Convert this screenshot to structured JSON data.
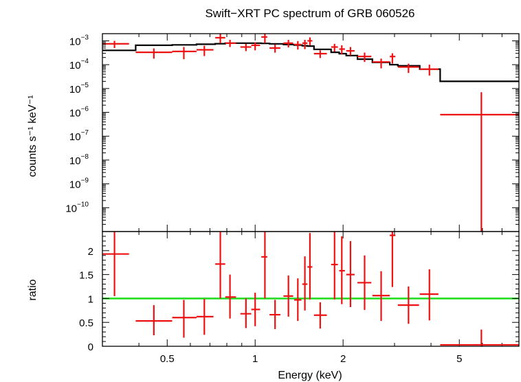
{
  "chart_data": [
    {
      "type": "line",
      "panel": "spectrum",
      "title": "Swift−XRT PC spectrum of GRB 060526",
      "xlabel": "",
      "ylabel": "counts s⁻¹ keV⁻¹",
      "xscale": "log",
      "yscale": "log",
      "xlim": [
        0.3,
        8.0
      ],
      "ylim": [
        1e-11,
        0.002
      ],
      "ytick_labels": [
        {
          "value": 0.001,
          "base": "10",
          "exp": "−3"
        },
        {
          "value": 0.0001,
          "base": "10",
          "exp": "−4"
        },
        {
          "value": 1e-05,
          "base": "10",
          "exp": "−5"
        },
        {
          "value": 1e-06,
          "base": "10",
          "exp": "−6"
        },
        {
          "value": 1e-07,
          "base": "10",
          "exp": "−7"
        },
        {
          "value": 1e-08,
          "base": "10",
          "exp": "−8"
        },
        {
          "value": 1e-09,
          "base": "10",
          "exp": "−9"
        },
        {
          "value": 1e-10,
          "base": "10",
          "exp": "−10"
        }
      ],
      "series": [
        {
          "name": "data",
          "color": "#ee1111",
          "points": [
            {
              "x": 0.33,
              "xlo": 0.3,
              "xhi": 0.37,
              "y": 0.00075,
              "ylo": 0.0005,
              "yhi": 0.001
            },
            {
              "x": 0.45,
              "xlo": 0.39,
              "xhi": 0.52,
              "y": 0.00033,
              "ylo": 0.00018,
              "yhi": 0.00048
            },
            {
              "x": 0.57,
              "xlo": 0.52,
              "xhi": 0.63,
              "y": 0.00036,
              "ylo": 0.00017,
              "yhi": 0.00055
            },
            {
              "x": 0.67,
              "xlo": 0.63,
              "xhi": 0.72,
              "y": 0.00042,
              "ylo": 0.00023,
              "yhi": 0.00062
            },
            {
              "x": 0.76,
              "xlo": 0.73,
              "xhi": 0.79,
              "y": 0.00135,
              "ylo": 0.0008,
              "yhi": 0.002
            },
            {
              "x": 0.82,
              "xlo": 0.79,
              "xhi": 0.86,
              "y": 0.0008,
              "ylo": 0.00055,
              "yhi": 0.0011
            },
            {
              "x": 0.93,
              "xlo": 0.89,
              "xhi": 0.97,
              "y": 0.00055,
              "ylo": 0.00037,
              "yhi": 0.00075
            },
            {
              "x": 1.0,
              "xlo": 0.97,
              "xhi": 1.04,
              "y": 0.00065,
              "ylo": 0.0004,
              "yhi": 0.00085
            },
            {
              "x": 1.08,
              "xlo": 1.05,
              "xhi": 1.1,
              "y": 0.00145,
              "ylo": 0.0008,
              "yhi": 0.002
            },
            {
              "x": 1.17,
              "xlo": 1.12,
              "xhi": 1.22,
              "y": 0.0005,
              "ylo": 0.00032,
              "yhi": 0.0007
            },
            {
              "x": 1.3,
              "xlo": 1.25,
              "xhi": 1.35,
              "y": 0.0008,
              "ylo": 0.00053,
              "yhi": 0.0011
            },
            {
              "x": 1.4,
              "xlo": 1.36,
              "xhi": 1.44,
              "y": 0.0007,
              "ylo": 0.00043,
              "yhi": 0.00098
            },
            {
              "x": 1.48,
              "xlo": 1.45,
              "xhi": 1.51,
              "y": 0.0008,
              "ylo": 0.00045,
              "yhi": 0.0011
            },
            {
              "x": 1.54,
              "xlo": 1.51,
              "xhi": 1.57,
              "y": 0.001,
              "ylo": 0.00065,
              "yhi": 0.0014
            },
            {
              "x": 1.67,
              "xlo": 1.59,
              "xhi": 1.76,
              "y": 0.00029,
              "ylo": 0.00019,
              "yhi": 0.0004
            },
            {
              "x": 1.87,
              "xlo": 1.82,
              "xhi": 1.92,
              "y": 0.00055,
              "ylo": 0.00035,
              "yhi": 0.00075
            },
            {
              "x": 1.98,
              "xlo": 1.94,
              "xhi": 2.03,
              "y": 0.00045,
              "ylo": 0.00027,
              "yhi": 0.00065
            },
            {
              "x": 2.12,
              "xlo": 2.05,
              "xhi": 2.19,
              "y": 0.00038,
              "ylo": 0.00024,
              "yhi": 0.00055
            },
            {
              "x": 2.37,
              "xlo": 2.24,
              "xhi": 2.5,
              "y": 0.00022,
              "ylo": 0.00013,
              "yhi": 0.00032
            },
            {
              "x": 2.7,
              "xlo": 2.52,
              "xhi": 2.89,
              "y": 0.00013,
              "ylo": 7e-05,
              "yhi": 0.00018
            },
            {
              "x": 2.95,
              "xlo": 2.89,
              "xhi": 3.02,
              "y": 0.00022,
              "ylo": 0.00011,
              "yhi": 0.0003
            },
            {
              "x": 3.35,
              "xlo": 3.08,
              "xhi": 3.64,
              "y": 8e-05,
              "ylo": 4.5e-05,
              "yhi": 0.00011
            },
            {
              "x": 3.95,
              "xlo": 3.66,
              "xhi": 4.24,
              "y": 6.5e-05,
              "ylo": 3.5e-05,
              "yhi": 0.0001
            },
            {
              "x": 5.95,
              "xlo": 4.3,
              "xhi": 8.0,
              "y": 8e-07,
              "ylo": 1e-11,
              "yhi": 7e-06
            }
          ]
        },
        {
          "name": "model",
          "color": "#000000",
          "steps": [
            {
              "xlo": 0.3,
              "xhi": 0.39,
              "y": 0.0004
            },
            {
              "xlo": 0.39,
              "xhi": 0.52,
              "y": 0.00065
            },
            {
              "xlo": 0.52,
              "xhi": 0.63,
              "y": 0.00068
            },
            {
              "xlo": 0.63,
              "xhi": 0.73,
              "y": 0.00072
            },
            {
              "xlo": 0.73,
              "xhi": 0.79,
              "y": 0.00076
            },
            {
              "xlo": 0.79,
              "xhi": 0.89,
              "y": 0.0008
            },
            {
              "xlo": 0.89,
              "xhi": 1.05,
              "y": 0.0008
            },
            {
              "xlo": 1.05,
              "xhi": 1.12,
              "y": 0.00078
            },
            {
              "xlo": 1.12,
              "xhi": 1.25,
              "y": 0.00075
            },
            {
              "xlo": 1.25,
              "xhi": 1.36,
              "y": 0.0007
            },
            {
              "xlo": 1.36,
              "xhi": 1.45,
              "y": 0.00066
            },
            {
              "xlo": 1.45,
              "xhi": 1.51,
              "y": 0.00062
            },
            {
              "xlo": 1.51,
              "xhi": 1.59,
              "y": 0.0006
            },
            {
              "xlo": 1.59,
              "xhi": 1.82,
              "y": 0.00044
            },
            {
              "xlo": 1.82,
              "xhi": 1.94,
              "y": 0.00033
            },
            {
              "xlo": 1.94,
              "xhi": 2.05,
              "y": 0.00029
            },
            {
              "xlo": 2.05,
              "xhi": 2.24,
              "y": 0.00024
            },
            {
              "xlo": 2.24,
              "xhi": 2.52,
              "y": 0.00017
            },
            {
              "xlo": 2.52,
              "xhi": 2.89,
              "y": 0.000125
            },
            {
              "xlo": 2.89,
              "xhi": 3.08,
              "y": 0.0001
            },
            {
              "xlo": 3.08,
              "xhi": 3.66,
              "y": 9e-05
            },
            {
              "xlo": 3.66,
              "xhi": 4.3,
              "y": 6.5e-05
            },
            {
              "xlo": 4.3,
              "xhi": 8.0,
              "y": 2e-05
            }
          ]
        }
      ]
    },
    {
      "type": "line",
      "panel": "ratio",
      "title": "",
      "xlabel": "Energy (keV)",
      "ylabel": "ratio",
      "xscale": "log",
      "yscale": "linear",
      "xlim": [
        0.3,
        8.0
      ],
      "ylim": [
        0,
        2.4
      ],
      "xticks": [
        {
          "value": 0.5,
          "label": "0.5"
        },
        {
          "value": 1,
          "label": "1"
        },
        {
          "value": 2,
          "label": "2"
        },
        {
          "value": 5,
          "label": "5"
        }
      ],
      "yticks": [
        {
          "value": 0,
          "label": "0"
        },
        {
          "value": 0.5,
          "label": "0.5"
        },
        {
          "value": 1,
          "label": "1"
        },
        {
          "value": 1.5,
          "label": "1.5"
        },
        {
          "value": 2,
          "label": "2"
        }
      ],
      "reference_line": {
        "y": 1,
        "color": "#22dd22"
      },
      "series": [
        {
          "name": "ratio",
          "color": "#ee1111",
          "points": [
            {
              "x": 0.33,
              "xlo": 0.3,
              "xhi": 0.37,
              "y": 1.93,
              "ylo": 1.05,
              "yhi": 2.4
            },
            {
              "x": 0.45,
              "xlo": 0.39,
              "xhi": 0.52,
              "y": 0.53,
              "ylo": 0.23,
              "yhi": 0.86
            },
            {
              "x": 0.57,
              "xlo": 0.52,
              "xhi": 0.63,
              "y": 0.6,
              "ylo": 0.18,
              "yhi": 0.97
            },
            {
              "x": 0.67,
              "xlo": 0.63,
              "xhi": 0.72,
              "y": 0.62,
              "ylo": 0.24,
              "yhi": 0.99
            },
            {
              "x": 0.76,
              "xlo": 0.73,
              "xhi": 0.79,
              "y": 1.72,
              "ylo": 1.0,
              "yhi": 2.4
            },
            {
              "x": 0.82,
              "xlo": 0.79,
              "xhi": 0.86,
              "y": 1.03,
              "ylo": 0.58,
              "yhi": 1.5
            },
            {
              "x": 0.93,
              "xlo": 0.89,
              "xhi": 0.97,
              "y": 0.68,
              "ylo": 0.38,
              "yhi": 1.0
            },
            {
              "x": 1.0,
              "xlo": 0.97,
              "xhi": 1.04,
              "y": 0.77,
              "ylo": 0.42,
              "yhi": 1.12
            },
            {
              "x": 1.08,
              "xlo": 1.05,
              "xhi": 1.1,
              "y": 1.87,
              "ylo": 1.0,
              "yhi": 2.4
            },
            {
              "x": 1.17,
              "xlo": 1.12,
              "xhi": 1.22,
              "y": 0.66,
              "ylo": 0.36,
              "yhi": 0.97
            },
            {
              "x": 1.3,
              "xlo": 1.25,
              "xhi": 1.35,
              "y": 1.05,
              "ylo": 0.62,
              "yhi": 1.48
            },
            {
              "x": 1.4,
              "xlo": 1.36,
              "xhi": 1.44,
              "y": 0.97,
              "ylo": 0.53,
              "yhi": 1.42
            },
            {
              "x": 1.48,
              "xlo": 1.45,
              "xhi": 1.51,
              "y": 1.3,
              "ylo": 0.75,
              "yhi": 1.88
            },
            {
              "x": 1.54,
              "xlo": 1.51,
              "xhi": 1.57,
              "y": 1.66,
              "ylo": 0.98,
              "yhi": 2.37
            },
            {
              "x": 1.67,
              "xlo": 1.59,
              "xhi": 1.76,
              "y": 0.65,
              "ylo": 0.37,
              "yhi": 0.92
            },
            {
              "x": 1.87,
              "xlo": 1.82,
              "xhi": 1.92,
              "y": 1.71,
              "ylo": 0.98,
              "yhi": 2.4
            },
            {
              "x": 1.98,
              "xlo": 1.94,
              "xhi": 2.03,
              "y": 1.58,
              "ylo": 0.88,
              "yhi": 2.3
            },
            {
              "x": 2.12,
              "xlo": 2.05,
              "xhi": 2.19,
              "y": 1.5,
              "ylo": 0.82,
              "yhi": 2.2
            },
            {
              "x": 2.37,
              "xlo": 2.24,
              "xhi": 2.5,
              "y": 1.33,
              "ylo": 0.76,
              "yhi": 1.9
            },
            {
              "x": 2.7,
              "xlo": 2.52,
              "xhi": 2.89,
              "y": 1.06,
              "ylo": 0.53,
              "yhi": 1.57
            },
            {
              "x": 2.95,
              "xlo": 2.89,
              "xhi": 3.02,
              "y": 2.32,
              "ylo": 1.24,
              "yhi": 2.4
            },
            {
              "x": 3.35,
              "xlo": 3.08,
              "xhi": 3.64,
              "y": 0.86,
              "ylo": 0.47,
              "yhi": 1.25
            },
            {
              "x": 3.95,
              "xlo": 3.66,
              "xhi": 4.24,
              "y": 1.09,
              "ylo": 0.54,
              "yhi": 1.61
            },
            {
              "x": 5.95,
              "xlo": 4.3,
              "xhi": 8.0,
              "y": 0.03,
              "ylo": 0.0,
              "yhi": 0.35
            }
          ]
        }
      ]
    }
  ]
}
